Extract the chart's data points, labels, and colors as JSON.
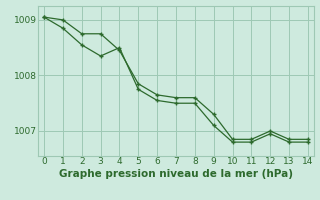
{
  "x": [
    0,
    1,
    2,
    3,
    4,
    5,
    6,
    7,
    8,
    9,
    10,
    11,
    12,
    13,
    14
  ],
  "line1": [
    1009.05,
    1009.0,
    1008.75,
    1008.75,
    1008.45,
    1007.85,
    1007.65,
    1007.6,
    1007.6,
    1007.3,
    1006.85,
    1006.85,
    1007.0,
    1006.85,
    1006.85
  ],
  "line2": [
    1009.05,
    1008.85,
    1008.55,
    1008.35,
    1008.5,
    1007.75,
    1007.55,
    1007.5,
    1007.5,
    1007.1,
    1006.8,
    1006.8,
    1006.95,
    1006.8,
    1006.8
  ],
  "line_color": "#2d6a2d",
  "marker": "+",
  "background_color": "#ceeade",
  "grid_color": "#9ec8b4",
  "xlabel": "Graphe pression niveau de la mer (hPa)",
  "xlabel_color": "#2d6a2d",
  "ylim_min": 1006.55,
  "ylim_max": 1009.25,
  "yticks": [
    1007,
    1008,
    1009
  ],
  "xticks": [
    0,
    1,
    2,
    3,
    4,
    5,
    6,
    7,
    8,
    9,
    10,
    11,
    12,
    13,
    14
  ],
  "tick_labelsize": 6.5,
  "xlabel_fontsize": 7.5
}
